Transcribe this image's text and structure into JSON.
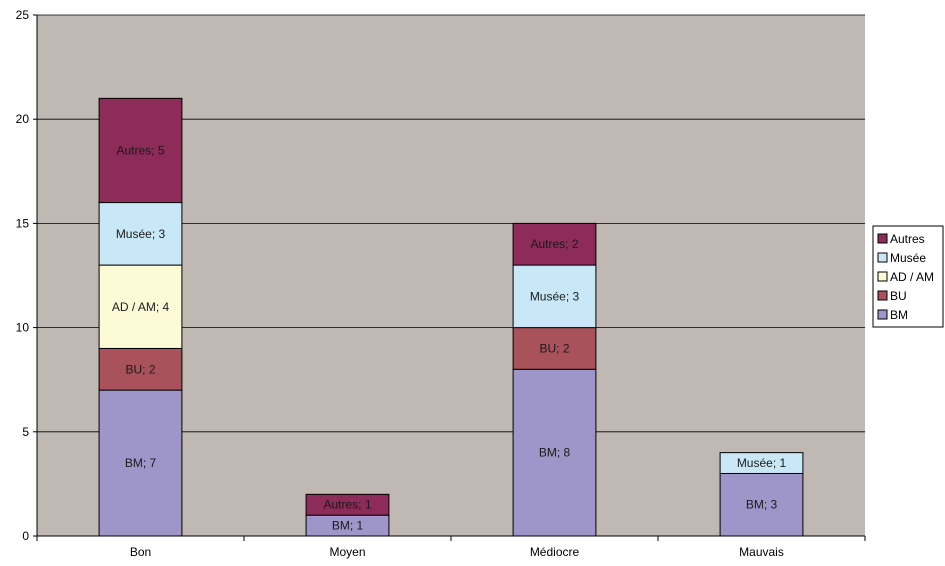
{
  "chart_data": {
    "type": "bar",
    "stacked": true,
    "title": "",
    "xlabel": "",
    "ylabel": "",
    "ylim": [
      0,
      25
    ],
    "yticks": [
      0,
      5,
      10,
      15,
      20,
      25
    ],
    "grid": true,
    "legend_position": "right",
    "plot_background": "#c0b8b2",
    "categories": [
      "Bon",
      "Moyen",
      "Médiocre",
      "Mauvais"
    ],
    "series": [
      {
        "name": "BM",
        "color": "#9e96c8",
        "values": [
          7,
          1,
          8,
          3
        ],
        "labels": [
          "BM; 7",
          "BM; 1",
          "BM; 8",
          "BM; 3"
        ]
      },
      {
        "name": "BU",
        "color": "#a9525b",
        "values": [
          2,
          0,
          2,
          0
        ],
        "labels": [
          "BU; 2",
          "",
          "BU; 2",
          ""
        ]
      },
      {
        "name": "AD / AM",
        "color": "#fdfbd7",
        "values": [
          4,
          0,
          0,
          0
        ],
        "labels": [
          "AD / AM; 4",
          "",
          "",
          ""
        ]
      },
      {
        "name": "Musée",
        "color": "#c9e8f7",
        "values": [
          3,
          0,
          3,
          1
        ],
        "labels": [
          "Musée; 3",
          "",
          "Musée; 3",
          "Musée; 1"
        ]
      },
      {
        "name": "Autres",
        "color": "#8d2b59",
        "values": [
          5,
          1,
          2,
          0
        ],
        "labels": [
          "Autres; 5",
          "Autres; 1",
          "Autres; 2",
          ""
        ]
      }
    ],
    "legend_order": [
      "Autres",
      "Musée",
      "AD / AM",
      "BU",
      "BM"
    ]
  }
}
